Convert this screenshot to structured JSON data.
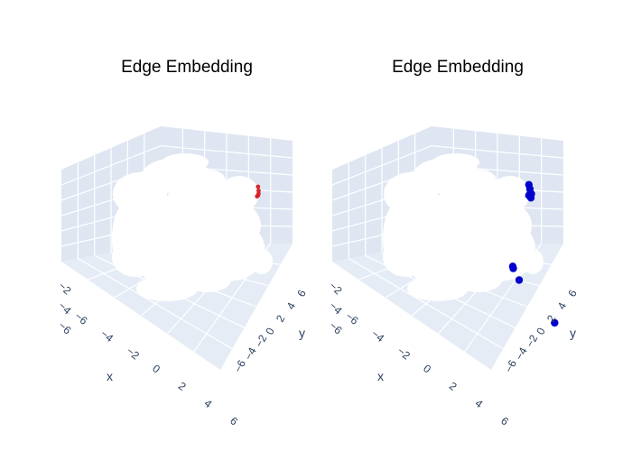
{
  "colors": {
    "pane": "#e5ecf6",
    "pane_back": "#dfe6f2",
    "grid": "#ffffff",
    "text": "#2a3f5f",
    "cloud": "#ffffff",
    "highlight_left": "#d62728",
    "highlight_right": "#0000cc"
  },
  "chart_data": [
    {
      "type": "scatter3d",
      "title": "Edge Embedding",
      "xlabel": "x",
      "ylabel": "y",
      "zlabel": "",
      "x_ticks": [
        "−6",
        "−4",
        "−2",
        "0",
        "2",
        "4",
        "6"
      ],
      "y_ticks": [
        "−6",
        "−4",
        "−2",
        "0",
        "2",
        "4",
        "6"
      ],
      "z_ticks": [
        "−6",
        "−4",
        "−2"
      ],
      "xlim": [
        -6,
        6
      ],
      "ylim": [
        -6,
        6
      ],
      "zlim": [
        -6,
        6
      ],
      "series": [
        {
          "role": "background",
          "color": "#ffffff"
        },
        {
          "role": "highlight",
          "color": "#d62728",
          "points": [
            [
              -1.2,
              0.6,
              4.0
            ],
            [
              -1.0,
              0.6,
              4.3
            ],
            [
              -0.9,
              0.6,
              4.6
            ],
            [
              -0.9,
              0.6,
              4.9
            ],
            [
              -1.0,
              0.6,
              5.2
            ]
          ]
        }
      ]
    },
    {
      "type": "scatter3d",
      "title": "Edge Embedding",
      "xlabel": "x",
      "ylabel": "y",
      "zlabel": "",
      "x_ticks": [
        "−6",
        "−4",
        "−2",
        "0",
        "2",
        "4",
        "6"
      ],
      "y_ticks": [
        "−6",
        "−4",
        "−2",
        "0",
        "2",
        "4",
        "6"
      ],
      "z_ticks": [
        "−6",
        "−4",
        "−2"
      ],
      "xlim": [
        -6,
        6
      ],
      "ylim": [
        -6,
        6
      ],
      "zlim": [
        -6,
        6
      ],
      "series": [
        {
          "role": "background",
          "color": "#ffffff"
        },
        {
          "role": "highlight",
          "color": "#0000cc",
          "points": [
            [
              -1.0,
              0.6,
              4.3
            ],
            [
              -0.8,
              0.6,
              4.6
            ],
            [
              -0.7,
              0.6,
              4.9
            ],
            [
              -0.8,
              0.6,
              5.2
            ],
            [
              -1.0,
              0.6,
              5.4
            ],
            [
              -0.6,
              0.6,
              4.5
            ],
            [
              -0.5,
              0.6,
              5.0
            ],
            [
              -1.6,
              -0.6,
              -3.6
            ],
            [
              -1.5,
              -0.6,
              -3.7
            ],
            [
              -0.3,
              -0.6,
              -3.6
            ],
            [
              3.3,
              1.0,
              -4.1
            ]
          ]
        }
      ]
    }
  ]
}
